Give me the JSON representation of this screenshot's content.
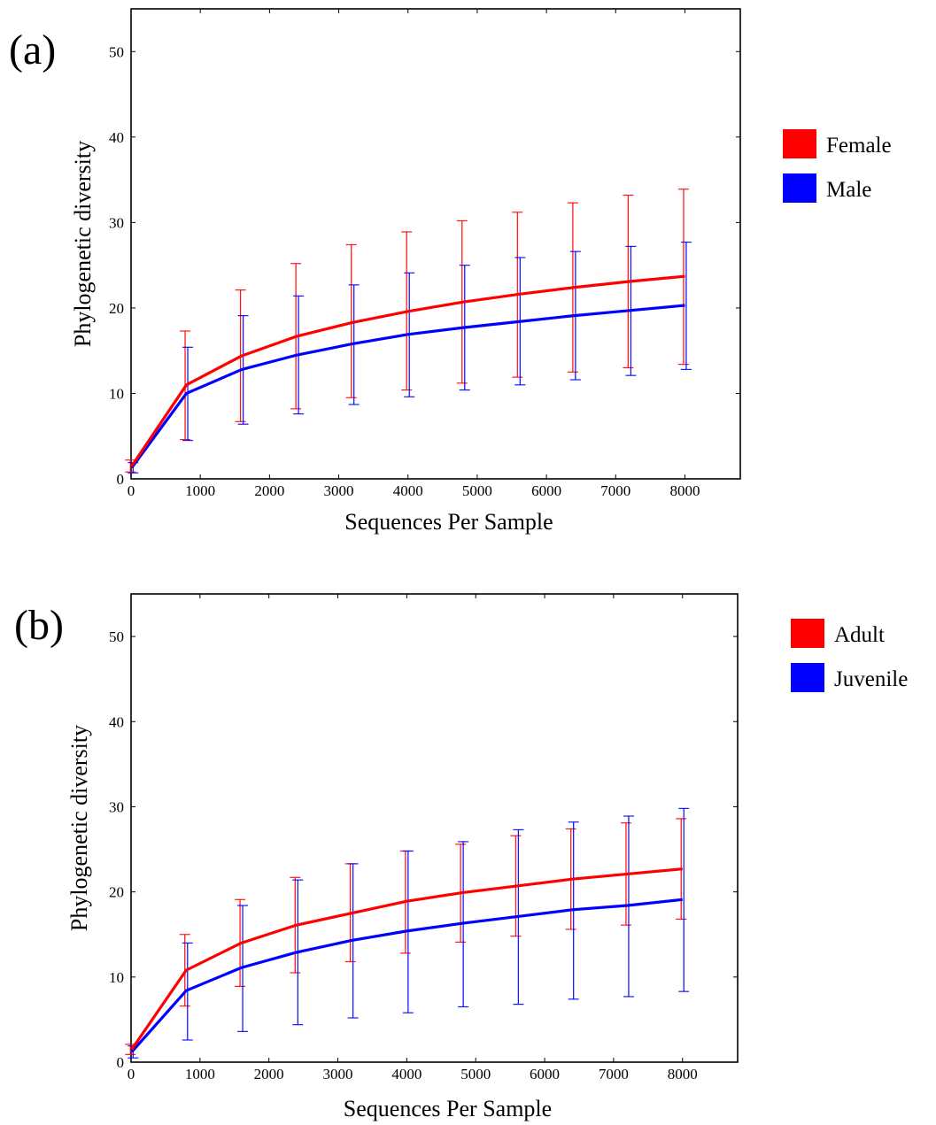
{
  "chart_data": [
    {
      "type": "line",
      "panel_label": "(a)",
      "xlabel": "Sequences Per Sample",
      "ylabel": "Phylogenetic diversity",
      "xlim": [
        0,
        8800
      ],
      "ylim": [
        0,
        55
      ],
      "x_ticks": [
        0,
        1000,
        2000,
        3000,
        4000,
        5000,
        6000,
        7000,
        8000
      ],
      "y_ticks": [
        0,
        10,
        20,
        30,
        40,
        50
      ],
      "x": [
        10,
        800,
        1600,
        2400,
        3200,
        4000,
        4800,
        5600,
        6400,
        7200,
        8000
      ],
      "legend_position": "right",
      "series": [
        {
          "name": "Female",
          "color": "#ff0000",
          "values": [
            1.5,
            11.0,
            14.4,
            16.7,
            18.3,
            19.6,
            20.7,
            21.6,
            22.4,
            23.1,
            23.7
          ],
          "error_low": [
            0.8,
            4.6,
            6.7,
            8.2,
            9.5,
            10.4,
            11.2,
            11.9,
            12.5,
            13.0,
            13.4
          ],
          "error_high": [
            2.2,
            17.3,
            22.1,
            25.2,
            27.4,
            28.9,
            30.2,
            31.2,
            32.3,
            33.2,
            33.9
          ]
        },
        {
          "name": "Male",
          "color": "#0000ff",
          "values": [
            1.3,
            10.0,
            12.8,
            14.5,
            15.8,
            16.9,
            17.7,
            18.4,
            19.1,
            19.7,
            20.3
          ],
          "error_low": [
            0.7,
            4.5,
            6.4,
            7.6,
            8.7,
            9.6,
            10.4,
            11.0,
            11.6,
            12.1,
            12.8
          ],
          "error_high": [
            1.9,
            15.4,
            19.1,
            21.4,
            22.7,
            24.1,
            25.0,
            25.9,
            26.6,
            27.2,
            27.7
          ]
        }
      ]
    },
    {
      "type": "line",
      "panel_label": "(b)",
      "xlabel": "Sequences Per Sample",
      "ylabel": "Phylogenetic diversity",
      "xlim": [
        0,
        8800
      ],
      "ylim": [
        0,
        55
      ],
      "x_ticks": [
        0,
        1000,
        2000,
        3000,
        4000,
        5000,
        6000,
        7000,
        8000
      ],
      "y_ticks": [
        0,
        10,
        20,
        30,
        40,
        50
      ],
      "x": [
        10,
        800,
        1600,
        2400,
        3200,
        4000,
        4800,
        5600,
        6400,
        7200,
        8000
      ],
      "legend_position": "right",
      "series": [
        {
          "name": "Adult",
          "color": "#ff0000",
          "values": [
            1.5,
            10.8,
            14.0,
            16.1,
            17.5,
            18.9,
            19.9,
            20.7,
            21.5,
            22.1,
            22.7
          ],
          "error_low": [
            0.9,
            6.6,
            8.9,
            10.5,
            11.8,
            12.8,
            14.1,
            14.8,
            15.6,
            16.1,
            16.8
          ],
          "error_high": [
            2.1,
            15.0,
            19.1,
            21.7,
            23.3,
            24.8,
            25.6,
            26.6,
            27.4,
            28.1,
            28.6
          ]
        },
        {
          "name": "Juvenile",
          "color": "#0000ff",
          "values": [
            1.2,
            8.4,
            11.1,
            12.9,
            14.3,
            15.4,
            16.3,
            17.1,
            17.9,
            18.4,
            19.1
          ],
          "error_low": [
            0.5,
            2.6,
            3.6,
            4.4,
            5.2,
            5.8,
            6.5,
            6.8,
            7.4,
            7.7,
            8.3
          ],
          "error_high": [
            1.9,
            14.0,
            18.4,
            21.4,
            23.3,
            24.8,
            25.9,
            27.3,
            28.2,
            28.9,
            29.8
          ]
        }
      ]
    }
  ]
}
